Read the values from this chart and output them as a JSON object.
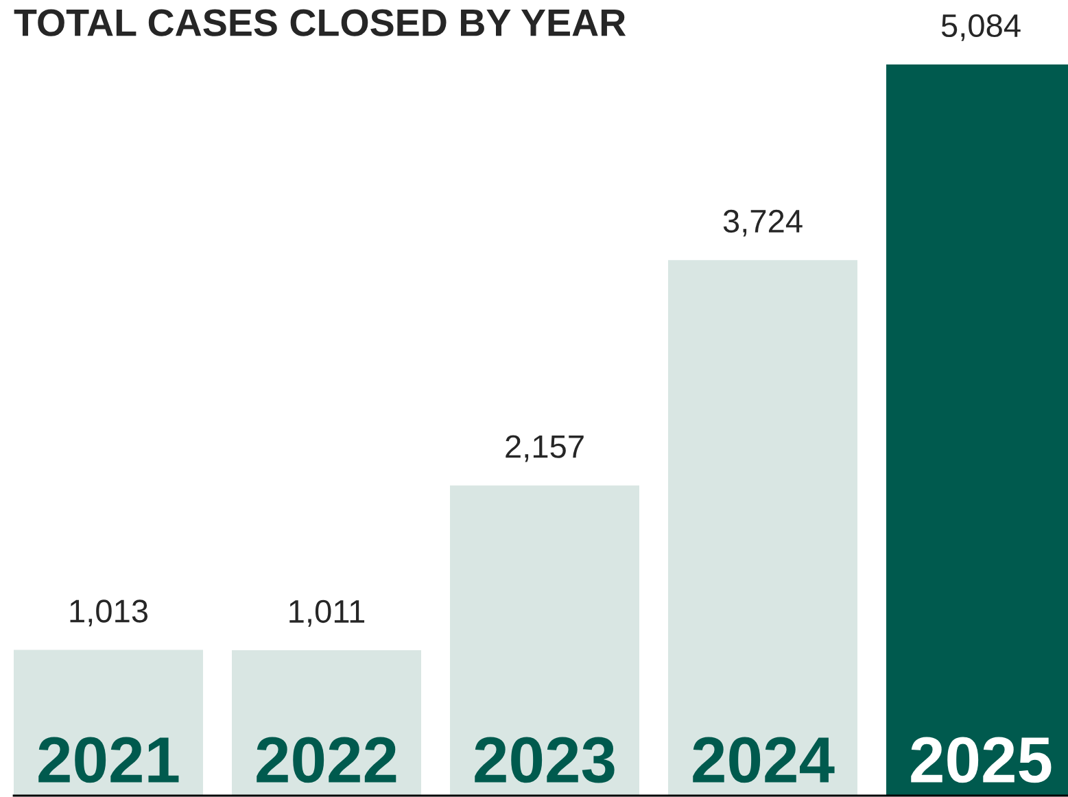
{
  "chart_data": {
    "type": "bar",
    "title": "TOTAL CASES CLOSED BY YEAR",
    "categories": [
      "2021",
      "2022",
      "2023",
      "2024",
      "2025"
    ],
    "values": [
      1013,
      1011,
      2157,
      3724,
      5084
    ],
    "colors": [
      "#d9e6e3",
      "#d9e6e3",
      "#d9e6e3",
      "#d9e6e3",
      "#005a4e"
    ],
    "value_labels": [
      "1,013",
      "1,011",
      "2,157",
      "3,724",
      "5,084"
    ]
  }
}
